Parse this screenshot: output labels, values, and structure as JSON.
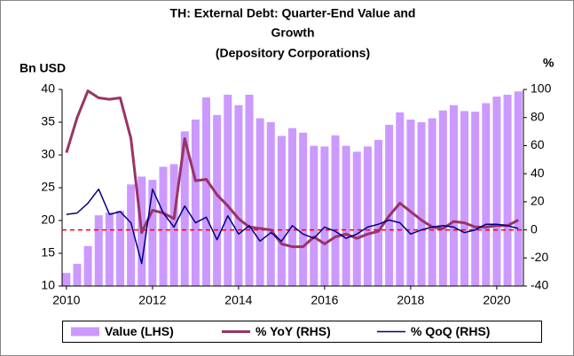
{
  "chart_data": {
    "type": "bar-line",
    "title": [
      "TH: External Debt: Quarter-End Value and",
      "Growth",
      "(Depository Corporations)"
    ],
    "y_label": "Bn USD",
    "y2_label": "%",
    "x": [
      2010,
      2010.25,
      2010.5,
      2010.75,
      2011,
      2011.25,
      2011.5,
      2011.75,
      2012,
      2012.25,
      2012.5,
      2012.75,
      2013,
      2013.25,
      2013.5,
      2013.75,
      2014,
      2014.25,
      2014.5,
      2014.75,
      2015,
      2015.25,
      2015.5,
      2015.75,
      2016,
      2016.25,
      2016.5,
      2016.75,
      2017,
      2017.25,
      2017.5,
      2017.75,
      2018,
      2018.25,
      2018.5,
      2018.75,
      2019,
      2019.25,
      2019.5,
      2019.75,
      2020,
      2020.25,
      2020.5
    ],
    "xlim": [
      2009.9,
      2020.62
    ],
    "xticks": [
      2010,
      2012,
      2014,
      2016,
      2018,
      2020
    ],
    "ylim": [
      10,
      40
    ],
    "yticks": [
      10,
      15,
      20,
      25,
      30,
      35,
      40
    ],
    "y2lim": [
      -40,
      100
    ],
    "y2ticks": [
      -40,
      -20,
      0,
      20,
      40,
      60,
      80,
      100
    ],
    "reference_line": {
      "axis": "y2",
      "value": 0,
      "color": "#ff0000"
    },
    "series": [
      {
        "name": "Value (LHS)",
        "type": "bar",
        "color": "#cc99ff",
        "values": [
          12,
          13.4,
          16.1,
          20.8,
          21.2,
          21.5,
          25.5,
          26.7,
          26.2,
          28.2,
          28.6,
          33.6,
          35.4,
          38.8,
          36.1,
          39.2,
          37.6,
          39.2,
          35.6,
          35.0,
          32.9,
          34.1,
          33.4,
          31.4,
          31.3,
          33.0,
          31.4,
          30.5,
          31.3,
          32.3,
          34.6,
          36.5,
          35.4,
          35.0,
          35.6,
          36.8,
          37.6,
          36.7,
          36.6,
          37.9,
          38.9,
          39.2,
          39.7
        ]
      },
      {
        "name": "% YoY (RHS)",
        "type": "line",
        "axis": "y2",
        "color": "#993366",
        "values": [
          55,
          80,
          99,
          94,
          93,
          94,
          65,
          -2,
          14,
          12,
          8,
          65,
          35,
          36,
          25,
          17,
          8,
          2,
          1,
          0,
          -10,
          -12,
          -12,
          -5,
          -10,
          -5,
          -3,
          -6,
          -3,
          -1,
          10,
          19,
          13,
          7,
          2,
          1,
          6,
          5,
          2,
          2,
          3,
          3,
          7
        ]
      },
      {
        "name": "% QoQ (RHS)",
        "type": "line",
        "axis": "y2",
        "color": "#000080",
        "values": [
          11,
          12,
          19,
          29,
          11,
          13,
          5,
          -24,
          29,
          12,
          2,
          17,
          5,
          9,
          -7,
          10,
          -3,
          3,
          -8,
          -2,
          -8,
          3,
          -3,
          -6,
          2,
          -1,
          -6,
          -3,
          2,
          4,
          7,
          5,
          -3,
          0,
          2,
          3,
          2,
          -2,
          0,
          4,
          4,
          3,
          1
        ]
      }
    ]
  }
}
